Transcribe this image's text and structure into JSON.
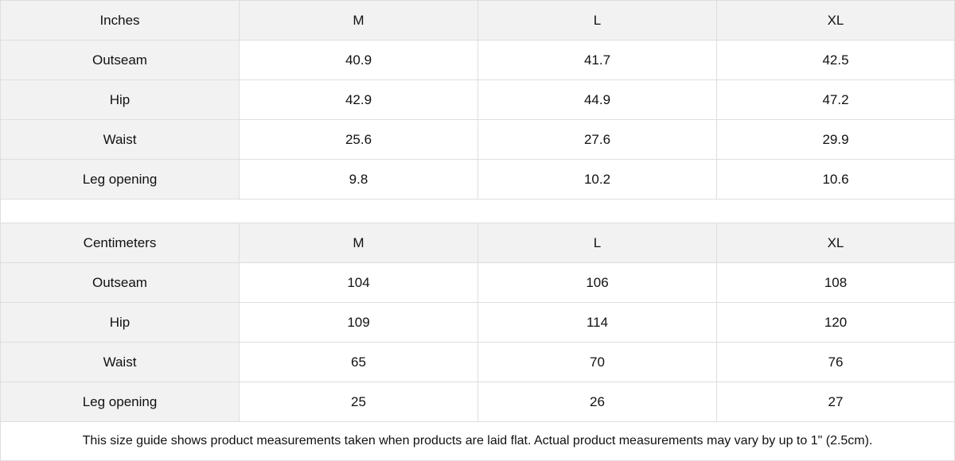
{
  "colors": {
    "header_bg": "#f2f2f2",
    "border": "#dedede",
    "cell_bg": "#ffffff"
  },
  "tables": [
    {
      "unit": "Inches",
      "sizes": [
        "M",
        "L",
        "XL"
      ],
      "rows": [
        {
          "label": "Outseam",
          "values": [
            "40.9",
            "41.7",
            "42.5"
          ]
        },
        {
          "label": "Hip",
          "values": [
            "42.9",
            "44.9",
            "47.2"
          ]
        },
        {
          "label": "Waist",
          "values": [
            "25.6",
            "27.6",
            "29.9"
          ]
        },
        {
          "label": "Leg opening",
          "values": [
            "9.8",
            "10.2",
            "10.6"
          ]
        }
      ]
    },
    {
      "unit": "Centimeters",
      "sizes": [
        "M",
        "L",
        "XL"
      ],
      "rows": [
        {
          "label": "Outseam",
          "values": [
            "104",
            "106",
            "108"
          ]
        },
        {
          "label": "Hip",
          "values": [
            "109",
            "114",
            "120"
          ]
        },
        {
          "label": "Waist",
          "values": [
            "65",
            "70",
            "76"
          ]
        },
        {
          "label": "Leg opening",
          "values": [
            "25",
            "26",
            "27"
          ]
        }
      ]
    }
  ],
  "note": "This size guide shows product measurements taken when products are laid flat.  Actual product measurements may vary by up to 1\" (2.5cm)."
}
